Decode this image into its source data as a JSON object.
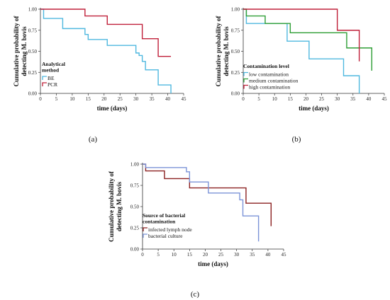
{
  "chart_data": [
    {
      "type": "line",
      "step": true,
      "panel_label": "(a)",
      "xlabel": "time (days)",
      "ylabel": [
        "Cumulative probability of",
        "detecting M. bovis"
      ],
      "xlim": [
        0,
        45
      ],
      "ylim": [
        0,
        1
      ],
      "xticks": [
        "0",
        "5",
        "10",
        "15",
        "20",
        "25",
        "30",
        "35",
        "40",
        "45"
      ],
      "yticks": [
        "0.00",
        "0.25",
        "0.50",
        "0.75",
        "1.00"
      ],
      "legend_title": [
        "Analytical",
        "method"
      ],
      "legend_position": "lower-left",
      "series": [
        {
          "name": "BE",
          "color": "#4fb8df",
          "x": [
            0,
            1,
            7,
            14,
            15,
            21,
            30,
            31,
            32,
            33,
            37,
            41
          ],
          "y": [
            1.0,
            0.89,
            0.77,
            0.7,
            0.64,
            0.57,
            0.48,
            0.45,
            0.38,
            0.28,
            0.1,
            0.0
          ]
        },
        {
          "name": "PCR",
          "color": "#c0203a",
          "x": [
            0,
            14,
            21,
            32,
            37,
            41
          ],
          "y": [
            1.0,
            0.92,
            0.82,
            0.65,
            0.44,
            0.44
          ]
        }
      ]
    },
    {
      "type": "line",
      "step": true,
      "panel_label": "(b)",
      "xlabel": "time (days)",
      "ylabel": [
        "Cumulative probability of",
        "detecting M. bovis"
      ],
      "xlim": [
        0,
        45
      ],
      "ylim": [
        0,
        1
      ],
      "xticks": [
        "0",
        "5",
        "10",
        "15",
        "20",
        "25",
        "30",
        "35",
        "40",
        "45"
      ],
      "yticks": [
        "0.00",
        "0.25",
        "0.50",
        "0.75",
        "1.00"
      ],
      "legend_title": [
        "Contamination level"
      ],
      "legend_position": "lower-left",
      "series": [
        {
          "name": "low contamination",
          "color": "#4fb8df",
          "x": [
            0,
            1,
            14,
            21,
            32,
            37
          ],
          "y": [
            1.0,
            0.83,
            0.62,
            0.41,
            0.21,
            0.0
          ]
        },
        {
          "name": "medium contamination",
          "color": "#2e9e35",
          "x": [
            0,
            1,
            7,
            15,
            33,
            41
          ],
          "y": [
            1.0,
            0.92,
            0.83,
            0.72,
            0.54,
            0.27
          ]
        },
        {
          "name": "high contamination",
          "color": "#c0203a",
          "x": [
            0,
            30,
            37
          ],
          "y": [
            1.0,
            0.75,
            0.38
          ]
        }
      ]
    },
    {
      "type": "line",
      "step": true,
      "panel_label": "(c)",
      "xlabel": "time (days)",
      "ylabel": [
        "Cumulative probability of",
        "detecting M. bovis"
      ],
      "xlim": [
        0,
        45
      ],
      "ylim": [
        0,
        1
      ],
      "xticks": [
        "0",
        "5",
        "10",
        "15",
        "20",
        "25",
        "30",
        "35",
        "40",
        "45"
      ],
      "yticks": [
        "0.00",
        "0.25",
        "0.50",
        "0.75",
        "1.00"
      ],
      "legend_title": [
        "Source of bacterial",
        "contamination"
      ],
      "legend_position": "lower-left",
      "series": [
        {
          "name": "infected lymph node",
          "color": "#8b2020",
          "x": [
            0,
            1,
            7,
            15,
            33,
            41
          ],
          "y": [
            1.0,
            0.92,
            0.83,
            0.72,
            0.54,
            0.27
          ]
        },
        {
          "name": "bacterial culture",
          "color": "#7b93d8",
          "x": [
            0,
            1,
            14,
            15,
            21,
            31,
            32,
            37
          ],
          "y": [
            1.0,
            0.96,
            0.91,
            0.79,
            0.66,
            0.58,
            0.39,
            0.09
          ]
        }
      ]
    }
  ]
}
